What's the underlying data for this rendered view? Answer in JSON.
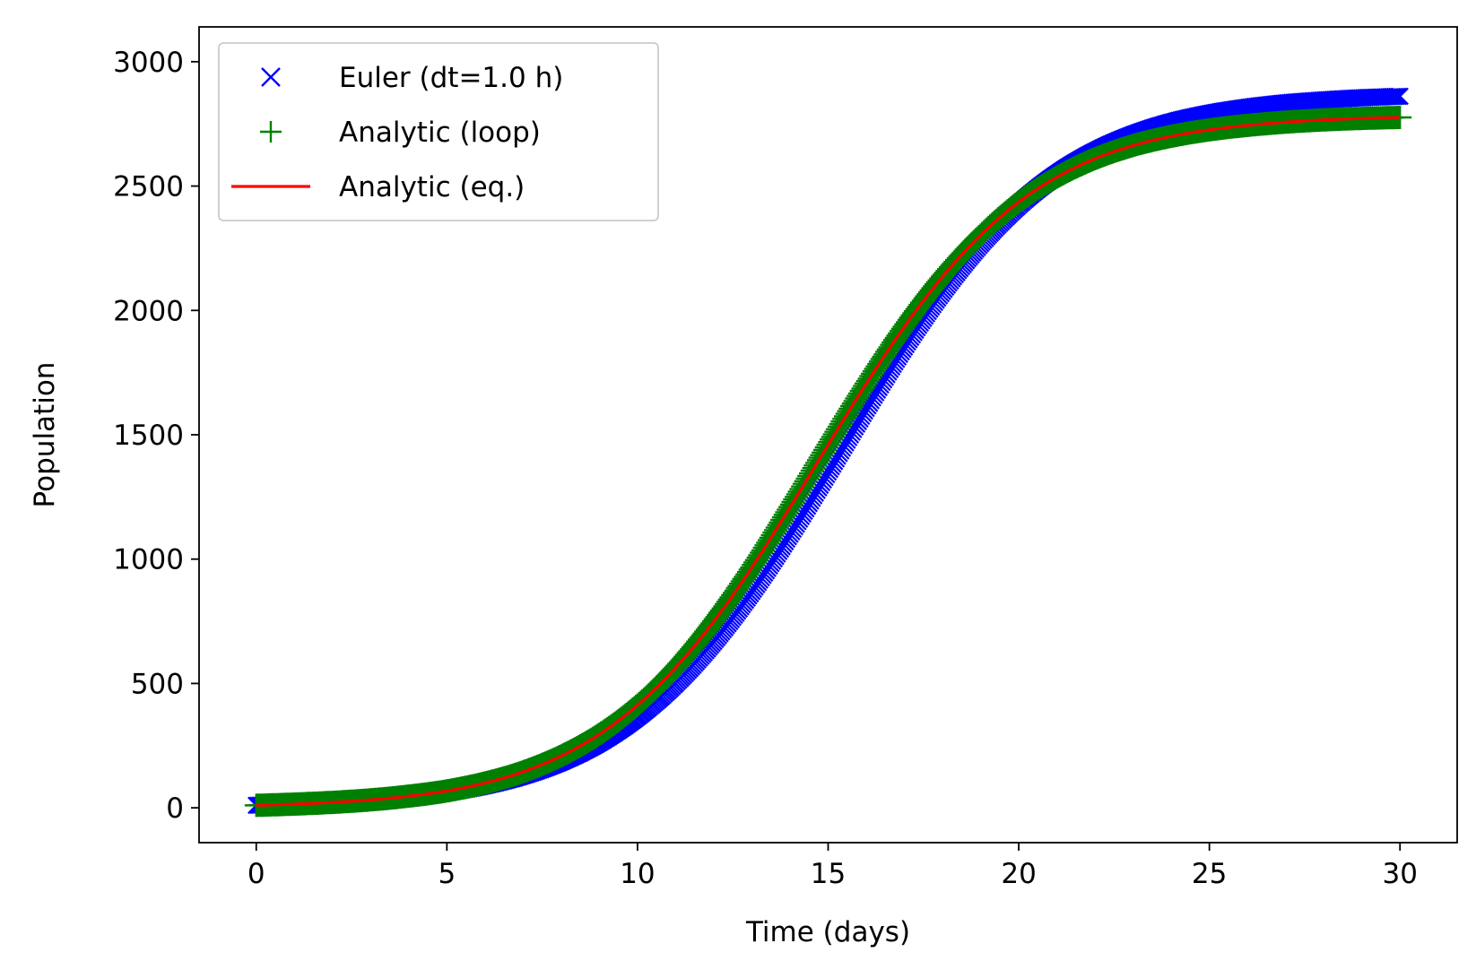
{
  "chart_data": {
    "type": "line",
    "title": "",
    "xlabel": "Time (days)",
    "ylabel": "Population",
    "xlim": [
      -1.5,
      31.5
    ],
    "ylim": [
      -140,
      3140
    ],
    "xticks": [
      0,
      5,
      10,
      15,
      20,
      25,
      30
    ],
    "yticks": [
      0,
      500,
      1000,
      1500,
      2000,
      2500,
      3000
    ],
    "grid": false,
    "legend_position": "top-left",
    "x": [
      0,
      1,
      2,
      3,
      4,
      5,
      6,
      7,
      8,
      9,
      10,
      11,
      12,
      13,
      14,
      15,
      16,
      17,
      18,
      19,
      20,
      21,
      22,
      23,
      24,
      25,
      26,
      27,
      28,
      29,
      30
    ],
    "series": [
      {
        "name": "Euler (dt=1.0 h)",
        "marker": "x",
        "color": "#0000ff",
        "values": [
          10,
          14,
          20,
          29,
          42,
          62,
          90,
          130,
          186,
          263,
          367,
          501,
          669,
          870,
          1100,
          1350,
          1606,
          1853,
          2076,
          2268,
          2424,
          2546,
          2638,
          2706,
          2756,
          2791,
          2816,
          2834,
          2846,
          2855,
          2861
        ]
      },
      {
        "name": "Analytic (loop)",
        "marker": "+",
        "color": "#008000",
        "values": [
          10,
          15,
          22,
          32,
          47,
          68,
          100,
          145,
          209,
          296,
          413,
          564,
          750,
          967,
          1209,
          1460,
          1706,
          1935,
          2136,
          2303,
          2436,
          2536,
          2610,
          2663,
          2700,
          2726,
          2744,
          2757,
          2766,
          2772,
          2776
        ]
      },
      {
        "name": "Analytic (eq.)",
        "marker": "line",
        "color": "#ff0000",
        "values": [
          10,
          15,
          22,
          32,
          47,
          68,
          100,
          145,
          209,
          296,
          413,
          564,
          750,
          967,
          1209,
          1460,
          1706,
          1935,
          2136,
          2303,
          2436,
          2536,
          2610,
          2663,
          2700,
          2726,
          2744,
          2757,
          2766,
          2772,
          2776
        ]
      }
    ]
  }
}
